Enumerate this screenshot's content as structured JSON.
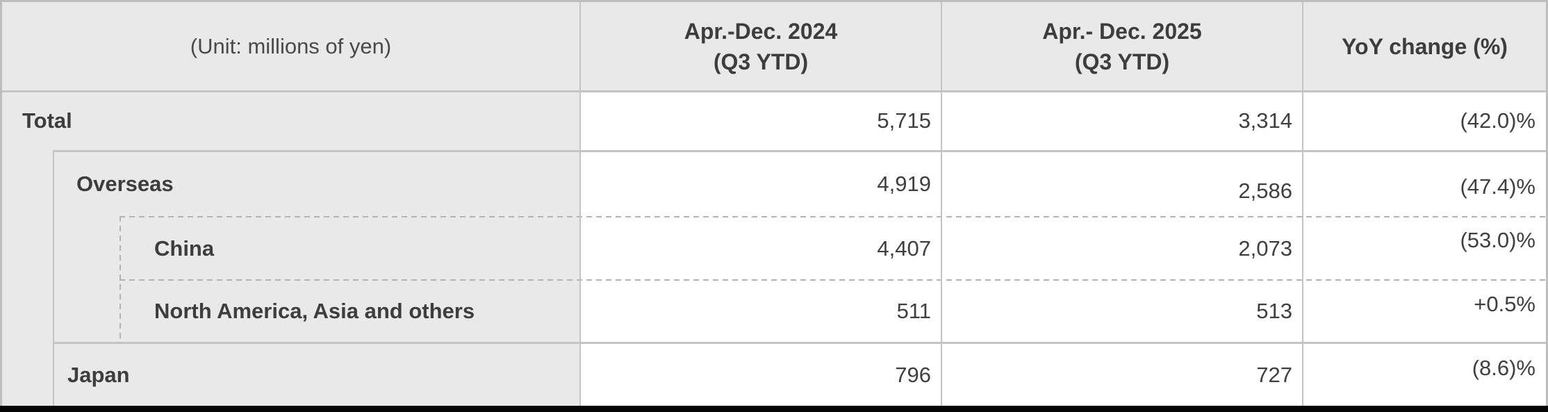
{
  "colors": {
    "table_background": "#e9e9e9",
    "data_cell_background": "#ffffff",
    "grid_line": "#c4c4c4",
    "dashed_line": "#b3b3b3",
    "text": "#3f3f3f",
    "bottom_border": "#000000"
  },
  "header": {
    "unit_label": "(Unit: millions of yen)",
    "col_2024_line1": "Apr.-Dec. 2024",
    "col_2024_line2": "(Q3 YTD)",
    "col_2025_line1": "Apr.- Dec. 2025",
    "col_2025_line2": "(Q3 YTD)",
    "col_yoy": "YoY change (%)"
  },
  "rows": [
    {
      "label": "Total",
      "fy2024_q3ytd": "5,715",
      "fy2025_q3ytd": "3,314",
      "yoy_change": "(42.0)%"
    },
    {
      "label": "Overseas",
      "fy2024_q3ytd": "4,919",
      "fy2025_q3ytd": "2,586",
      "yoy_change": "(47.4)%"
    },
    {
      "label": "China",
      "fy2024_q3ytd": "4,407",
      "fy2025_q3ytd": "2,073",
      "yoy_change": "(53.0)%"
    },
    {
      "label": "North America, Asia and others",
      "fy2024_q3ytd": "511",
      "fy2025_q3ytd": "513",
      "yoy_change": "+0.5%"
    },
    {
      "label": "Japan",
      "fy2024_q3ytd": "796",
      "fy2025_q3ytd": "727",
      "yoy_change": "(8.6)%"
    }
  ]
}
